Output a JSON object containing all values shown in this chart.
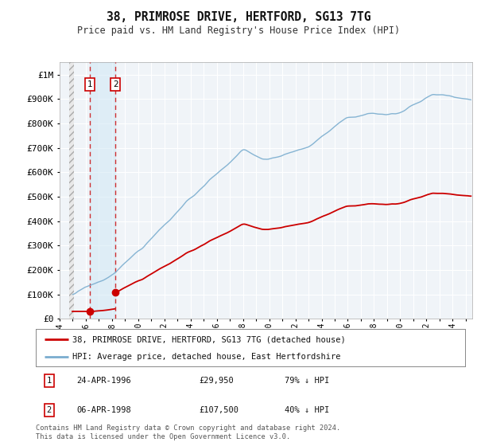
{
  "title": "38, PRIMROSE DRIVE, HERTFORD, SG13 7TG",
  "subtitle": "Price paid vs. HM Land Registry's House Price Index (HPI)",
  "ylim": [
    0,
    1050000
  ],
  "xlim_start": 1994.75,
  "xlim_end": 2025.5,
  "background_color": "#ffffff",
  "plot_bg_color": "#f0f4f8",
  "grid_color": "#ffffff",
  "purchase1_year": 1996.31,
  "purchase1_price": 29950,
  "purchase2_year": 1998.27,
  "purchase2_price": 107500,
  "legend_entry1": "38, PRIMROSE DRIVE, HERTFORD, SG13 7TG (detached house)",
  "legend_entry2": "HPI: Average price, detached house, East Hertfordshire",
  "footer": "Contains HM Land Registry data © Crown copyright and database right 2024.\nThis data is licensed under the Open Government Licence v3.0.",
  "red_line_color": "#cc0000",
  "blue_line_color": "#7aadcf",
  "ytick_labels": [
    "£0",
    "£100K",
    "£200K",
    "£300K",
    "£400K",
    "£500K",
    "£600K",
    "£700K",
    "£800K",
    "£900K",
    "£1M"
  ],
  "ytick_values": [
    0,
    100000,
    200000,
    300000,
    400000,
    500000,
    600000,
    700000,
    800000,
    900000,
    1000000
  ],
  "hpi_seed": 17,
  "noise_scale": 5000
}
